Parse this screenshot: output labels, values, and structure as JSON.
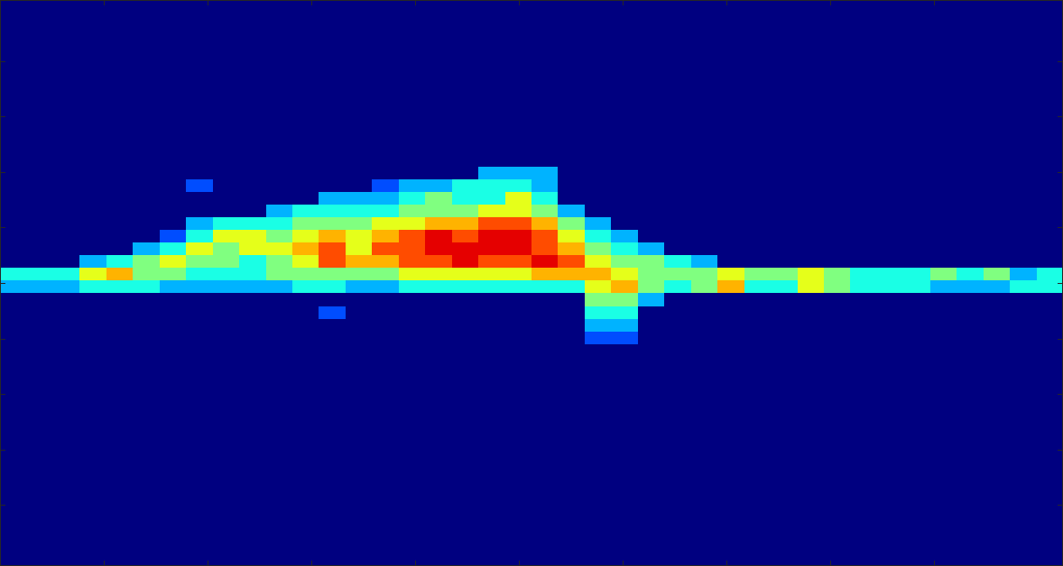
{
  "chart_data": {
    "type": "heatmap",
    "xlim": [
      0,
      10.24
    ],
    "ylim": [
      -1.1,
      9.1
    ],
    "xticks": [
      1,
      2,
      3,
      4,
      5,
      6,
      7,
      8,
      9
    ],
    "yticks": [
      0,
      1,
      2,
      3,
      4,
      5,
      6,
      7,
      8
    ],
    "tick_labels": false,
    "color": "jet",
    "color_range": [
      0,
      10
    ],
    "cell_xlim": [
      0,
      10.24
    ],
    "cell_ylim": [
      2.9,
      6.1
    ],
    "cells": [
      [
        0,
        0,
        0,
        0,
        0,
        0,
        0,
        0,
        0,
        0,
        0,
        0,
        0,
        0,
        0,
        0,
        0,
        0,
        3,
        3,
        3,
        0,
        0,
        0,
        0,
        0,
        0,
        0,
        0,
        0,
        0,
        0,
        0,
        0,
        0,
        0,
        0,
        0,
        0,
        0
      ],
      [
        0,
        0,
        0,
        0,
        0,
        0,
        0,
        2,
        0,
        0,
        0,
        0,
        0,
        0,
        2,
        3,
        3,
        4,
        4,
        4,
        3,
        0,
        0,
        0,
        0,
        0,
        0,
        0,
        0,
        0,
        0,
        0,
        0,
        0,
        0,
        0,
        0,
        0,
        0,
        0
      ],
      [
        0,
        0,
        0,
        0,
        0,
        0,
        0,
        0,
        0,
        0,
        0,
        0,
        3,
        3,
        3,
        4,
        5,
        4,
        4,
        6,
        4,
        0,
        0,
        0,
        0,
        0,
        0,
        0,
        0,
        0,
        0,
        0,
        0,
        0,
        0,
        0,
        0,
        0,
        0,
        0
      ],
      [
        0,
        0,
        0,
        0,
        0,
        0,
        0,
        0,
        0,
        0,
        3,
        4,
        4,
        4,
        4,
        5,
        5,
        5,
        6,
        6,
        5,
        3,
        0,
        0,
        0,
        0,
        0,
        0,
        0,
        0,
        0,
        0,
        0,
        0,
        0,
        0,
        0,
        0,
        0,
        0
      ],
      [
        0,
        0,
        0,
        0,
        0,
        0,
        0,
        3,
        4,
        4,
        4,
        5,
        5,
        5,
        6,
        6,
        7,
        7,
        8,
        8,
        7,
        5,
        3,
        0,
        0,
        0,
        0,
        0,
        0,
        0,
        0,
        0,
        0,
        0,
        0,
        0,
        0,
        0,
        0,
        0
      ],
      [
        0,
        0,
        0,
        0,
        0,
        0,
        2,
        4,
        6,
        6,
        5,
        6,
        7,
        6,
        7,
        8,
        9,
        8,
        9,
        9,
        8,
        6,
        4,
        3,
        0,
        0,
        0,
        0,
        0,
        0,
        0,
        0,
        0,
        0,
        0,
        0,
        0,
        0,
        0,
        0
      ],
      [
        0,
        0,
        0,
        0,
        0,
        3,
        4,
        6,
        5,
        6,
        6,
        7,
        8,
        6,
        8,
        8,
        9,
        9,
        9,
        9,
        8,
        7,
        5,
        4,
        3,
        0,
        0,
        0,
        0,
        0,
        0,
        0,
        0,
        0,
        0,
        0,
        0,
        0,
        0,
        0
      ],
      [
        0,
        0,
        0,
        3,
        4,
        5,
        6,
        5,
        5,
        4,
        5,
        6,
        8,
        7,
        7,
        8,
        8,
        9,
        8,
        8,
        9,
        8,
        6,
        5,
        5,
        4,
        3,
        0,
        0,
        0,
        0,
        0,
        0,
        0,
        0,
        0,
        0,
        0,
        0,
        0
      ],
      [
        4,
        4,
        4,
        6,
        7,
        5,
        5,
        4,
        4,
        4,
        5,
        5,
        5,
        5,
        5,
        6,
        6,
        6,
        6,
        6,
        7,
        7,
        7,
        6,
        5,
        5,
        5,
        6,
        5,
        5,
        6,
        5,
        4,
        4,
        4,
        5,
        4,
        5,
        3,
        4
      ],
      [
        3,
        3,
        3,
        4,
        4,
        4,
        3,
        3,
        3,
        3,
        3,
        4,
        4,
        3,
        3,
        4,
        4,
        4,
        4,
        4,
        4,
        4,
        6,
        7,
        5,
        4,
        5,
        7,
        4,
        4,
        6,
        5,
        4,
        4,
        4,
        3,
        3,
        3,
        4,
        4
      ],
      [
        0,
        0,
        0,
        0,
        0,
        0,
        0,
        0,
        0,
        0,
        0,
        0,
        0,
        0,
        0,
        0,
        0,
        0,
        0,
        0,
        0,
        0,
        5,
        5,
        3,
        0,
        0,
        0,
        0,
        0,
        0,
        0,
        0,
        0,
        0,
        0,
        0,
        0,
        0,
        0
      ],
      [
        0,
        0,
        0,
        0,
        0,
        0,
        0,
        0,
        0,
        0,
        0,
        0,
        2,
        0,
        0,
        0,
        0,
        0,
        0,
        0,
        0,
        0,
        4,
        4,
        0,
        0,
        0,
        0,
        0,
        0,
        0,
        0,
        0,
        0,
        0,
        0,
        0,
        0,
        0,
        0
      ],
      [
        0,
        0,
        0,
        0,
        0,
        0,
        0,
        0,
        0,
        0,
        0,
        0,
        0,
        0,
        0,
        0,
        0,
        0,
        0,
        0,
        0,
        0,
        3,
        3,
        0,
        0,
        0,
        0,
        0,
        0,
        0,
        0,
        0,
        0,
        0,
        0,
        0,
        0,
        0,
        0
      ],
      [
        0,
        0,
        0,
        0,
        0,
        0,
        0,
        0,
        0,
        0,
        0,
        0,
        0,
        0,
        0,
        0,
        0,
        0,
        0,
        0,
        0,
        0,
        2,
        2,
        0,
        0,
        0,
        0,
        0,
        0,
        0,
        0,
        0,
        0,
        0,
        0,
        0,
        0,
        0,
        0
      ]
    ]
  }
}
